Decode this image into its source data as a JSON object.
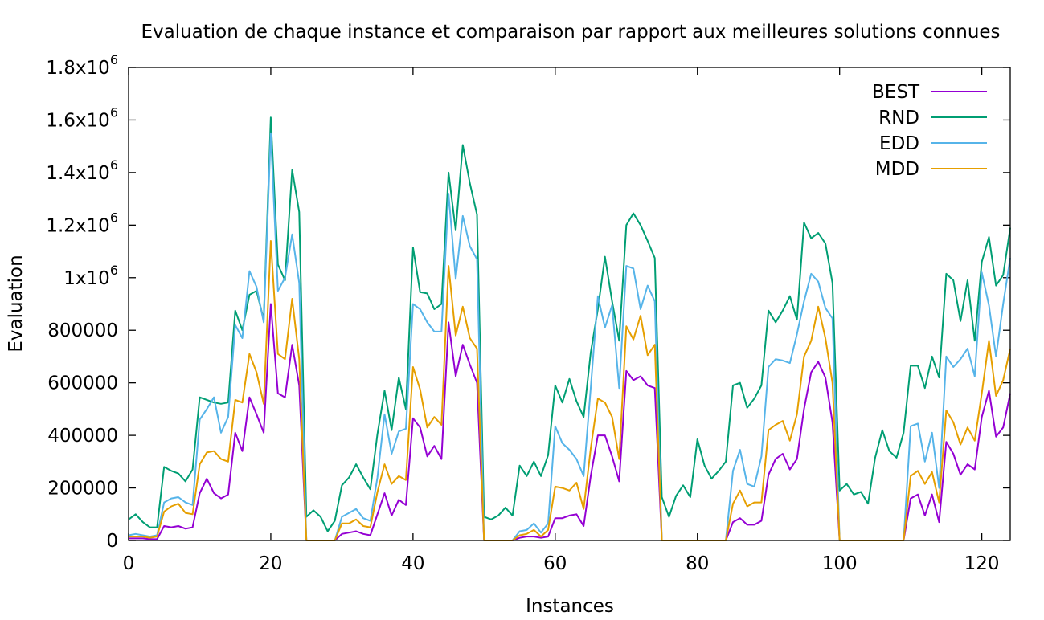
{
  "chart_data": {
    "type": "line",
    "title": "Evaluation de chaque instance et comparaison par rapport aux meilleures solutions connues",
    "xlabel": "Instances",
    "ylabel": "Evaluation",
    "xlim": [
      0,
      124
    ],
    "ylim": [
      0,
      1800000
    ],
    "grid": false,
    "legend_position": "top-right",
    "x_ticks": [
      0,
      20,
      40,
      60,
      80,
      100,
      120
    ],
    "x_tick_labels": [
      "0",
      "20",
      "40",
      "60",
      "80",
      "100",
      "120"
    ],
    "y_ticks": [
      0,
      200000,
      400000,
      600000,
      800000,
      1000000,
      1200000,
      1400000,
      1600000,
      1800000
    ],
    "y_tick_labels": [
      {
        "text": "0",
        "base": "0",
        "exp": ""
      },
      {
        "text": "200000",
        "base": "200000",
        "exp": ""
      },
      {
        "text": "400000",
        "base": "400000",
        "exp": ""
      },
      {
        "text": "600000",
        "base": "600000",
        "exp": ""
      },
      {
        "text": "800000",
        "base": "800000",
        "exp": ""
      },
      {
        "text": "1x10",
        "base": "1x10",
        "exp": "6"
      },
      {
        "text": "1.2x10",
        "base": "1.2x10",
        "exp": "6"
      },
      {
        "text": "1.4x10",
        "base": "1.4x10",
        "exp": "6"
      },
      {
        "text": "1.6x10",
        "base": "1.6x10",
        "exp": "6"
      },
      {
        "text": "1.8x10",
        "base": "1.8x10",
        "exp": "6"
      }
    ],
    "series": [
      {
        "name": "BEST",
        "color": "#9400d3",
        "values": [
          8000,
          8000,
          8000,
          5000,
          5000,
          55000,
          50000,
          55000,
          45000,
          50000,
          180000,
          235000,
          180000,
          160000,
          175000,
          410000,
          340000,
          545000,
          480000,
          410000,
          900000,
          560000,
          545000,
          745000,
          590000,
          0,
          0,
          0,
          0,
          0,
          25000,
          30000,
          35000,
          25000,
          20000,
          100000,
          180000,
          95000,
          155000,
          135000,
          465000,
          430000,
          320000,
          360000,
          310000,
          830000,
          625000,
          745000,
          670000,
          600000,
          0,
          0,
          0,
          0,
          0,
          10000,
          15000,
          15000,
          10000,
          15000,
          85000,
          85000,
          95000,
          100000,
          55000,
          245000,
          400000,
          400000,
          320000,
          225000,
          645000,
          610000,
          625000,
          590000,
          580000,
          0,
          0,
          0,
          0,
          0,
          0,
          0,
          0,
          0,
          0,
          70000,
          85000,
          60000,
          60000,
          75000,
          250000,
          310000,
          330000,
          270000,
          310000,
          500000,
          640000,
          680000,
          620000,
          450000,
          0,
          0,
          0,
          0,
          0,
          0,
          0,
          0,
          0,
          0,
          160000,
          175000,
          95000,
          175000,
          70000,
          375000,
          330000,
          250000,
          290000,
          270000,
          470000,
          570000,
          395000,
          430000,
          560000
        ]
      },
      {
        "name": "RND",
        "color": "#009e73",
        "values": [
          80000,
          100000,
          70000,
          50000,
          50000,
          280000,
          265000,
          255000,
          225000,
          270000,
          545000,
          535000,
          525000,
          520000,
          525000,
          875000,
          800000,
          935000,
          950000,
          840000,
          1610000,
          1050000,
          990000,
          1410000,
          1250000,
          90000,
          115000,
          90000,
          35000,
          75000,
          210000,
          240000,
          290000,
          240000,
          195000,
          405000,
          570000,
          420000,
          620000,
          500000,
          1115000,
          945000,
          940000,
          880000,
          900000,
          1400000,
          1180000,
          1505000,
          1360000,
          1240000,
          90000,
          80000,
          95000,
          125000,
          95000,
          285000,
          245000,
          300000,
          245000,
          325000,
          590000,
          525000,
          615000,
          530000,
          470000,
          715000,
          880000,
          1080000,
          910000,
          760000,
          1200000,
          1245000,
          1200000,
          1140000,
          1075000,
          165000,
          90000,
          170000,
          210000,
          165000,
          385000,
          285000,
          235000,
          265000,
          300000,
          590000,
          600000,
          505000,
          540000,
          590000,
          875000,
          830000,
          875000,
          930000,
          840000,
          1210000,
          1150000,
          1170000,
          1130000,
          980000,
          190000,
          215000,
          175000,
          185000,
          140000,
          315000,
          420000,
          340000,
          315000,
          410000,
          665000,
          665000,
          580000,
          700000,
          620000,
          1015000,
          990000,
          835000,
          990000,
          760000,
          1060000,
          1155000,
          970000,
          1010000,
          1190000
        ]
      },
      {
        "name": "EDD",
        "color": "#56b4e9",
        "values": [
          20000,
          25000,
          20000,
          15000,
          20000,
          145000,
          160000,
          165000,
          145000,
          135000,
          460000,
          500000,
          545000,
          410000,
          470000,
          820000,
          770000,
          1025000,
          965000,
          830000,
          1550000,
          950000,
          1000000,
          1165000,
          980000,
          0,
          0,
          0,
          0,
          0,
          90000,
          105000,
          120000,
          85000,
          75000,
          240000,
          480000,
          330000,
          415000,
          425000,
          900000,
          880000,
          830000,
          795000,
          795000,
          1320000,
          995000,
          1235000,
          1120000,
          1070000,
          0,
          0,
          0,
          0,
          0,
          35000,
          40000,
          65000,
          30000,
          65000,
          435000,
          370000,
          345000,
          310000,
          245000,
          580000,
          930000,
          810000,
          895000,
          580000,
          1045000,
          1035000,
          880000,
          970000,
          910000,
          0,
          0,
          0,
          0,
          0,
          0,
          0,
          0,
          0,
          0,
          265000,
          345000,
          215000,
          205000,
          320000,
          660000,
          690000,
          685000,
          675000,
          785000,
          910000,
          1015000,
          985000,
          885000,
          845000,
          0,
          0,
          0,
          0,
          0,
          0,
          0,
          0,
          0,
          0,
          435000,
          445000,
          300000,
          410000,
          200000,
          700000,
          660000,
          690000,
          730000,
          625000,
          1020000,
          895000,
          700000,
          900000,
          1075000
        ]
      },
      {
        "name": "MDD",
        "color": "#e69f00",
        "values": [
          15000,
          15000,
          15000,
          10000,
          15000,
          110000,
          130000,
          140000,
          105000,
          100000,
          290000,
          335000,
          340000,
          310000,
          300000,
          535000,
          525000,
          710000,
          640000,
          520000,
          1140000,
          710000,
          690000,
          920000,
          690000,
          0,
          0,
          0,
          0,
          0,
          65000,
          65000,
          80000,
          55000,
          50000,
          185000,
          290000,
          215000,
          245000,
          230000,
          660000,
          575000,
          430000,
          470000,
          440000,
          1045000,
          780000,
          890000,
          770000,
          730000,
          0,
          0,
          0,
          0,
          0,
          20000,
          25000,
          40000,
          15000,
          40000,
          205000,
          200000,
          190000,
          220000,
          120000,
          350000,
          540000,
          525000,
          470000,
          310000,
          815000,
          765000,
          855000,
          705000,
          745000,
          0,
          0,
          0,
          0,
          0,
          0,
          0,
          0,
          0,
          0,
          140000,
          190000,
          130000,
          145000,
          145000,
          420000,
          440000,
          455000,
          380000,
          480000,
          700000,
          760000,
          890000,
          770000,
          600000,
          0,
          0,
          0,
          0,
          0,
          0,
          0,
          0,
          0,
          0,
          245000,
          265000,
          215000,
          260000,
          145000,
          495000,
          450000,
          365000,
          430000,
          380000,
          560000,
          760000,
          550000,
          610000,
          730000
        ]
      }
    ]
  }
}
